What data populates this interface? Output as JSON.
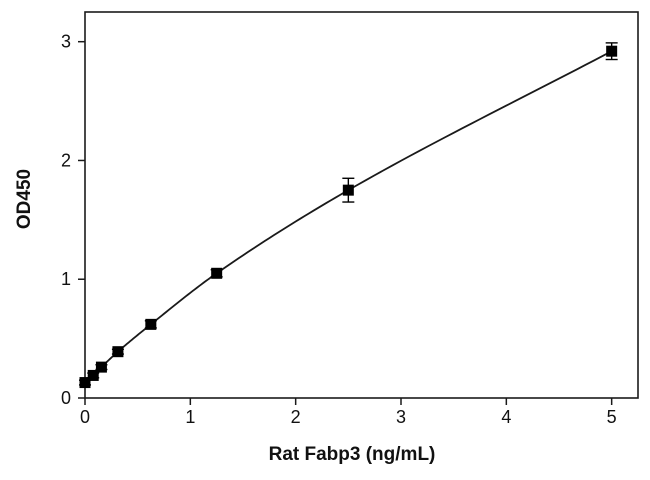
{
  "chart_data": {
    "type": "scatter",
    "title": "",
    "xlabel": "Rat Fabp3 (ng/mL)",
    "ylabel": "OD450",
    "xlim": [
      0,
      5.25
    ],
    "ylim": [
      0,
      3.25
    ],
    "x_ticks": [
      0,
      1,
      2,
      3,
      4,
      5
    ],
    "y_ticks": [
      0,
      1,
      2,
      3
    ],
    "grid": false,
    "legend": "none",
    "colors": {
      "marker": "#000000",
      "curve": "#1a1a1a",
      "axis": "#1a1a1a"
    },
    "series": [
      {
        "marker": "square",
        "x": [
          0,
          0.078,
          0.156,
          0.3125,
          0.625,
          1.25,
          2.5,
          5
        ],
        "y": [
          0.13,
          0.19,
          0.26,
          0.39,
          0.62,
          1.05,
          1.75,
          2.92
        ],
        "error": [
          0.02,
          0.02,
          0.02,
          0.02,
          0.03,
          0.03,
          0.1,
          0.07
        ]
      }
    ],
    "fit_curve": true
  }
}
